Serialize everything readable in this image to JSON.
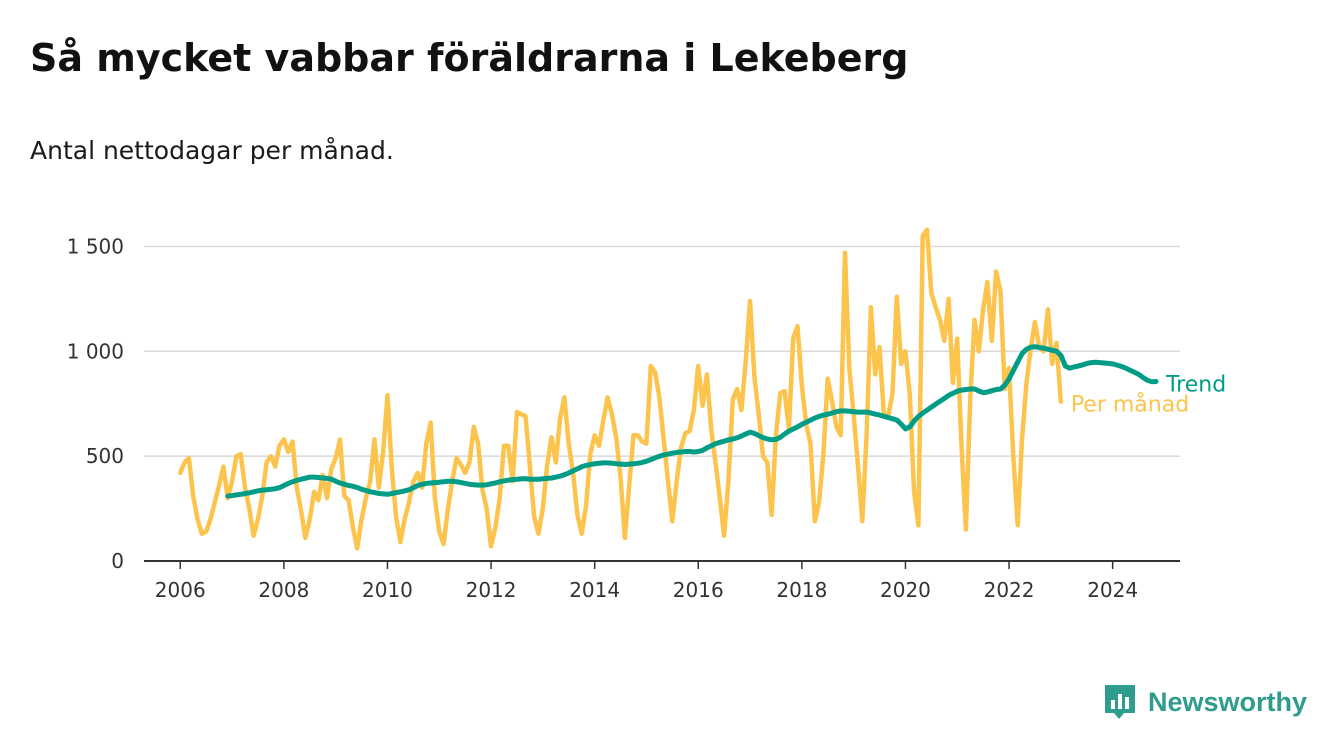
{
  "title": "Så mycket vabbar föräldrarna i Lekeberg",
  "subtitle": "Antal nettodagar per månad.",
  "brand": {
    "name": "Newsworthy",
    "icon": "newsworthy-logo-icon",
    "color": "#2f9c8e"
  },
  "chart_data": {
    "type": "line",
    "title": "",
    "xlabel": "",
    "ylabel": "",
    "xlim": [
      2005.3,
      2025.3
    ],
    "ylim": [
      0,
      1650
    ],
    "grid": true,
    "y_ticks": [
      {
        "value": 0,
        "label": "0"
      },
      {
        "value": 500,
        "label": "500"
      },
      {
        "value": 1000,
        "label": "1 000"
      },
      {
        "value": 1500,
        "label": "1 500"
      }
    ],
    "x_ticks": [
      {
        "value": 2006,
        "label": "2006"
      },
      {
        "value": 2008,
        "label": "2008"
      },
      {
        "value": 2010,
        "label": "2010"
      },
      {
        "value": 2012,
        "label": "2012"
      },
      {
        "value": 2014,
        "label": "2014"
      },
      {
        "value": 2016,
        "label": "2016"
      },
      {
        "value": 2018,
        "label": "2018"
      },
      {
        "value": 2020,
        "label": "2020"
      },
      {
        "value": 2022,
        "label": "2022"
      },
      {
        "value": 2024,
        "label": "2024"
      }
    ],
    "series": [
      {
        "name": "Per månad",
        "color": "#fcc44d",
        "x_start": 2006.0,
        "x_step": 0.08333,
        "values": [
          420,
          470,
          490,
          310,
          200,
          130,
          140,
          200,
          280,
          360,
          450,
          300,
          380,
          500,
          510,
          350,
          250,
          120,
          200,
          310,
          470,
          500,
          450,
          550,
          580,
          520,
          570,
          350,
          240,
          110,
          200,
          330,
          290,
          410,
          300,
          440,
          490,
          580,
          310,
          290,
          160,
          60,
          200,
          300,
          380,
          580,
          350,
          520,
          790,
          440,
          210,
          90,
          200,
          280,
          380,
          420,
          350,
          560,
          660,
          300,
          140,
          80,
          250,
          380,
          490,
          460,
          420,
          470,
          640,
          560,
          340,
          250,
          70,
          160,
          300,
          550,
          550,
          380,
          710,
          700,
          690,
          450,
          210,
          130,
          250,
          460,
          590,
          470,
          680,
          780,
          560,
          420,
          220,
          130,
          260,
          510,
          600,
          550,
          670,
          780,
          700,
          590,
          400,
          110,
          360,
          600,
          600,
          570,
          560,
          930,
          900,
          780,
          580,
          380,
          190,
          380,
          540,
          610,
          620,
          720,
          930,
          740,
          890,
          630,
          470,
          300,
          120,
          390,
          770,
          820,
          720,
          950,
          1240,
          880,
          700,
          500,
          470,
          220,
          600,
          800,
          810,
          630,
          1060,
          1120,
          840,
          650,
          560,
          190,
          280,
          510,
          870,
          760,
          640,
          600,
          1470,
          920,
          700,
          460,
          190,
          600,
          1210,
          890,
          1020,
          700,
          690,
          800,
          1260,
          940,
          1000,
          800,
          330,
          170,
          1550,
          1580,
          1280,
          1210,
          1150,
          1050,
          1250,
          850,
          1060,
          550,
          150,
          770,
          1150,
          1000,
          1200,
          1330,
          1050,
          1380,
          1290,
          820,
          920,
          500,
          170,
          580,
          840,
          1010,
          1140,
          1020,
          1000,
          1200,
          940,
          1040,
          760
        ]
      },
      {
        "name": "Trend",
        "color": "#009c86",
        "x_start": 2006.92,
        "x_step": 0.08333,
        "values": [
          310,
          312,
          315,
          318,
          322,
          325,
          330,
          335,
          338,
          340,
          342,
          345,
          350,
          360,
          370,
          378,
          385,
          390,
          395,
          400,
          400,
          398,
          396,
          394,
          390,
          380,
          372,
          366,
          360,
          356,
          350,
          342,
          336,
          330,
          326,
          322,
          320,
          318,
          322,
          326,
          330,
          335,
          340,
          350,
          360,
          366,
          370,
          372,
          374,
          376,
          378,
          380,
          380,
          378,
          374,
          370,
          366,
          364,
          362,
          362,
          364,
          368,
          372,
          378,
          382,
          386,
          388,
          390,
          392,
          392,
          390,
          390,
          390,
          392,
          394,
          396,
          400,
          405,
          412,
          420,
          430,
          440,
          450,
          456,
          460,
          464,
          466,
          468,
          468,
          466,
          464,
          462,
          460,
          462,
          464,
          466,
          470,
          476,
          484,
          492,
          500,
          506,
          510,
          514,
          518,
          520,
          522,
          522,
          520,
          522,
          528,
          540,
          550,
          560,
          566,
          572,
          578,
          582,
          588,
          596,
          606,
          614,
          608,
          598,
          588,
          582,
          578,
          580,
          590,
          606,
          620,
          630,
          640,
          652,
          662,
          672,
          682,
          690,
          696,
          700,
          706,
          712,
          716,
          716,
          714,
          712,
          710,
          710,
          710,
          706,
          700,
          696,
          690,
          684,
          678,
          672,
          652,
          630,
          640,
          668,
          690,
          706,
          720,
          734,
          748,
          762,
          776,
          790,
          800,
          810,
          815,
          818,
          820,
          820,
          810,
          803,
          806,
          812,
          818,
          820,
          840,
          870,
          910,
          950,
          990,
          1010,
          1020,
          1022,
          1018,
          1015,
          1010,
          1005,
          1000,
          980,
          930,
          920,
          925,
          930,
          935,
          942,
          946,
          948,
          946,
          944,
          942,
          940,
          934,
          928,
          920,
          910,
          900,
          890,
          875,
          862,
          855,
          856
        ]
      }
    ]
  }
}
